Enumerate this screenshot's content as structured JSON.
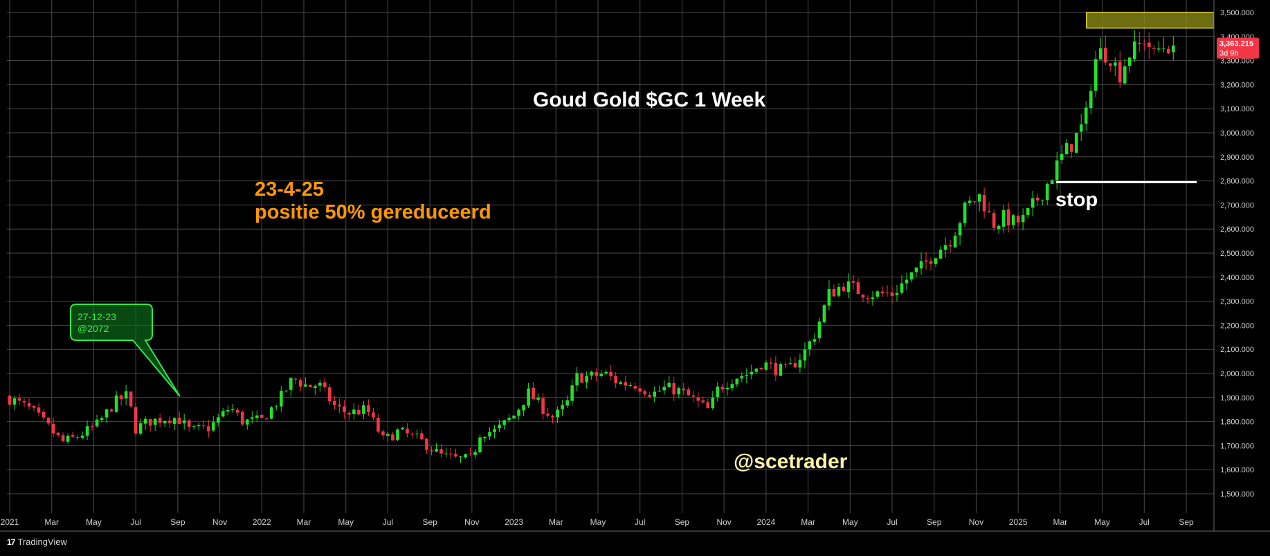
{
  "colors": {
    "background": "#000000",
    "grid": "#4a4a4a",
    "up": "#22e02a",
    "down": "#f23645",
    "orange": "#ff9800",
    "callout_green": "#2fe84a",
    "zone_fill": "#8a8a14",
    "zone_border": "#e0d63a",
    "price_tag": "#f23645"
  },
  "branding": {
    "label": "TradingView",
    "logo": "17"
  },
  "chart_data": {
    "type": "candlestick",
    "title": "Goud Gold $GC 1 Week",
    "watermark": "@scetrader",
    "y_ticks": [
      1500,
      1600,
      1700,
      1800,
      1900,
      2000,
      2100,
      2200,
      2300,
      2400,
      2500,
      2600,
      2700,
      2800,
      2900,
      3000,
      3100,
      3200,
      3300,
      3400,
      3500
    ],
    "y_tick_labels": [
      "1,500.000",
      "1,600.000",
      "1,700.000",
      "1,800.000",
      "1,900.000",
      "2,000.000",
      "2,100.000",
      "2,200.000",
      "2,300.000",
      "2,400.000",
      "2,500.000",
      "2,600.000",
      "2,700.000",
      "2,800.000",
      "2,900.000",
      "3,000.000",
      "3,100.000",
      "3,200.000",
      "3,300.000",
      "3,400.000",
      "3,500.000"
    ],
    "ylim": [
      1430,
      3535
    ],
    "x_labels": [
      "2021",
      "Mar",
      "May",
      "Jul",
      "Sep",
      "Nov",
      "2022",
      "Mar",
      "May",
      "Jul",
      "Sep",
      "Nov",
      "2023",
      "Mar",
      "May",
      "Jul",
      "Sep",
      "Nov",
      "2024",
      "Mar",
      "May",
      "Jul",
      "Sep",
      "Nov",
      "2025",
      "Mar",
      "May",
      "Jul",
      "Sep"
    ],
    "x_label_months": [
      0,
      2,
      4,
      6,
      8,
      10,
      12,
      14,
      16,
      18,
      20,
      22,
      24,
      26,
      28,
      30,
      32,
      34,
      36,
      38,
      40,
      42,
      44,
      46,
      48,
      50,
      52,
      54,
      56
    ],
    "x_range_months": [
      0,
      57.5
    ],
    "last_price_label": "3,363.215",
    "countdown_label": "3d 9h",
    "last_price": 3363,
    "anchors": [
      [
        0,
        1895
      ],
      [
        1.0,
        1850
      ],
      [
        1.7,
        1790
      ],
      [
        2.5,
        1715
      ],
      [
        3.2,
        1735
      ],
      [
        4.2,
        1790
      ],
      [
        5.0,
        1880
      ],
      [
        5.6,
        1910
      ],
      [
        6.0,
        1770
      ],
      [
        6.6,
        1800
      ],
      [
        7.5,
        1815
      ],
      [
        8.0,
        1815
      ],
      [
        8.6,
        1760
      ],
      [
        9.5,
        1775
      ],
      [
        10.5,
        1860
      ],
      [
        11.1,
        1800
      ],
      [
        12.0,
        1805
      ],
      [
        12.9,
        1900
      ],
      [
        13.5,
        1980
      ],
      [
        14.2,
        1945
      ],
      [
        14.7,
        1955
      ],
      [
        15.5,
        1860
      ],
      [
        16.1,
        1835
      ],
      [
        17.0,
        1850
      ],
      [
        17.8,
        1720
      ],
      [
        18.5,
        1760
      ],
      [
        19.5,
        1725
      ],
      [
        20.5,
        1660
      ],
      [
        21.2,
        1645
      ],
      [
        22.0,
        1645
      ],
      [
        22.4,
        1755
      ],
      [
        23.1,
        1760
      ],
      [
        24.0,
        1825
      ],
      [
        24.7,
        1920
      ],
      [
        25.3,
        1860
      ],
      [
        25.9,
        1815
      ],
      [
        26.5,
        1870
      ],
      [
        27.0,
        1985
      ],
      [
        27.6,
        1985
      ],
      [
        28.3,
        2000
      ],
      [
        29.0,
        1960
      ],
      [
        29.8,
        1955
      ],
      [
        30.6,
        1915
      ],
      [
        31.2,
        1940
      ],
      [
        31.8,
        1930
      ],
      [
        32.4,
        1900
      ],
      [
        33.3,
        1845
      ],
      [
        33.7,
        1935
      ],
      [
        34.5,
        1985
      ],
      [
        35.2,
        2000
      ],
      [
        35.8,
        2045
      ],
      [
        36.4,
        2020
      ],
      [
        37.0,
        2010
      ],
      [
        37.8,
        2085
      ],
      [
        38.3,
        2160
      ],
      [
        39.0,
        2330
      ],
      [
        39.7,
        2370
      ],
      [
        40.5,
        2340
      ],
      [
        41.2,
        2330
      ],
      [
        42.0,
        2330
      ],
      [
        42.8,
        2400
      ],
      [
        43.4,
        2440
      ],
      [
        44.0,
        2500
      ],
      [
        44.8,
        2560
      ],
      [
        45.5,
        2690
      ],
      [
        46.2,
        2740
      ],
      [
        46.8,
        2620
      ],
      [
        47.4,
        2650
      ],
      [
        47.8,
        2625
      ],
      [
        48.3,
        2640
      ],
      [
        48.8,
        2710
      ],
      [
        49.4,
        2790
      ],
      [
        50.0,
        2890
      ],
      [
        50.6,
        2960
      ],
      [
        51.2,
        3050
      ],
      [
        51.6,
        3295
      ],
      [
        52.0,
        3340
      ],
      [
        52.4,
        3320
      ],
      [
        52.8,
        3240
      ],
      [
        53.3,
        3330
      ],
      [
        53.7,
        3350
      ],
      [
        54.1,
        3405
      ],
      [
        54.4,
        3310
      ],
      [
        54.8,
        3360
      ],
      [
        55.2,
        3365
      ],
      [
        55.5,
        3363
      ]
    ],
    "resistance_zone": {
      "y1": 3435,
      "y2": 3500,
      "x1_month": 51.25
    },
    "stop": {
      "label": "stop",
      "value": 2795,
      "x1_month": 49.8,
      "x2_month": 56.5
    },
    "annotations": [
      {
        "text_lines": [
          "23-4-25",
          "positie 50% gereduceerd"
        ]
      },
      {
        "callout_lines": [
          "27-12-23",
          "@2072"
        ],
        "pointer_month": 8.1,
        "pointer_value": 1905
      }
    ]
  }
}
